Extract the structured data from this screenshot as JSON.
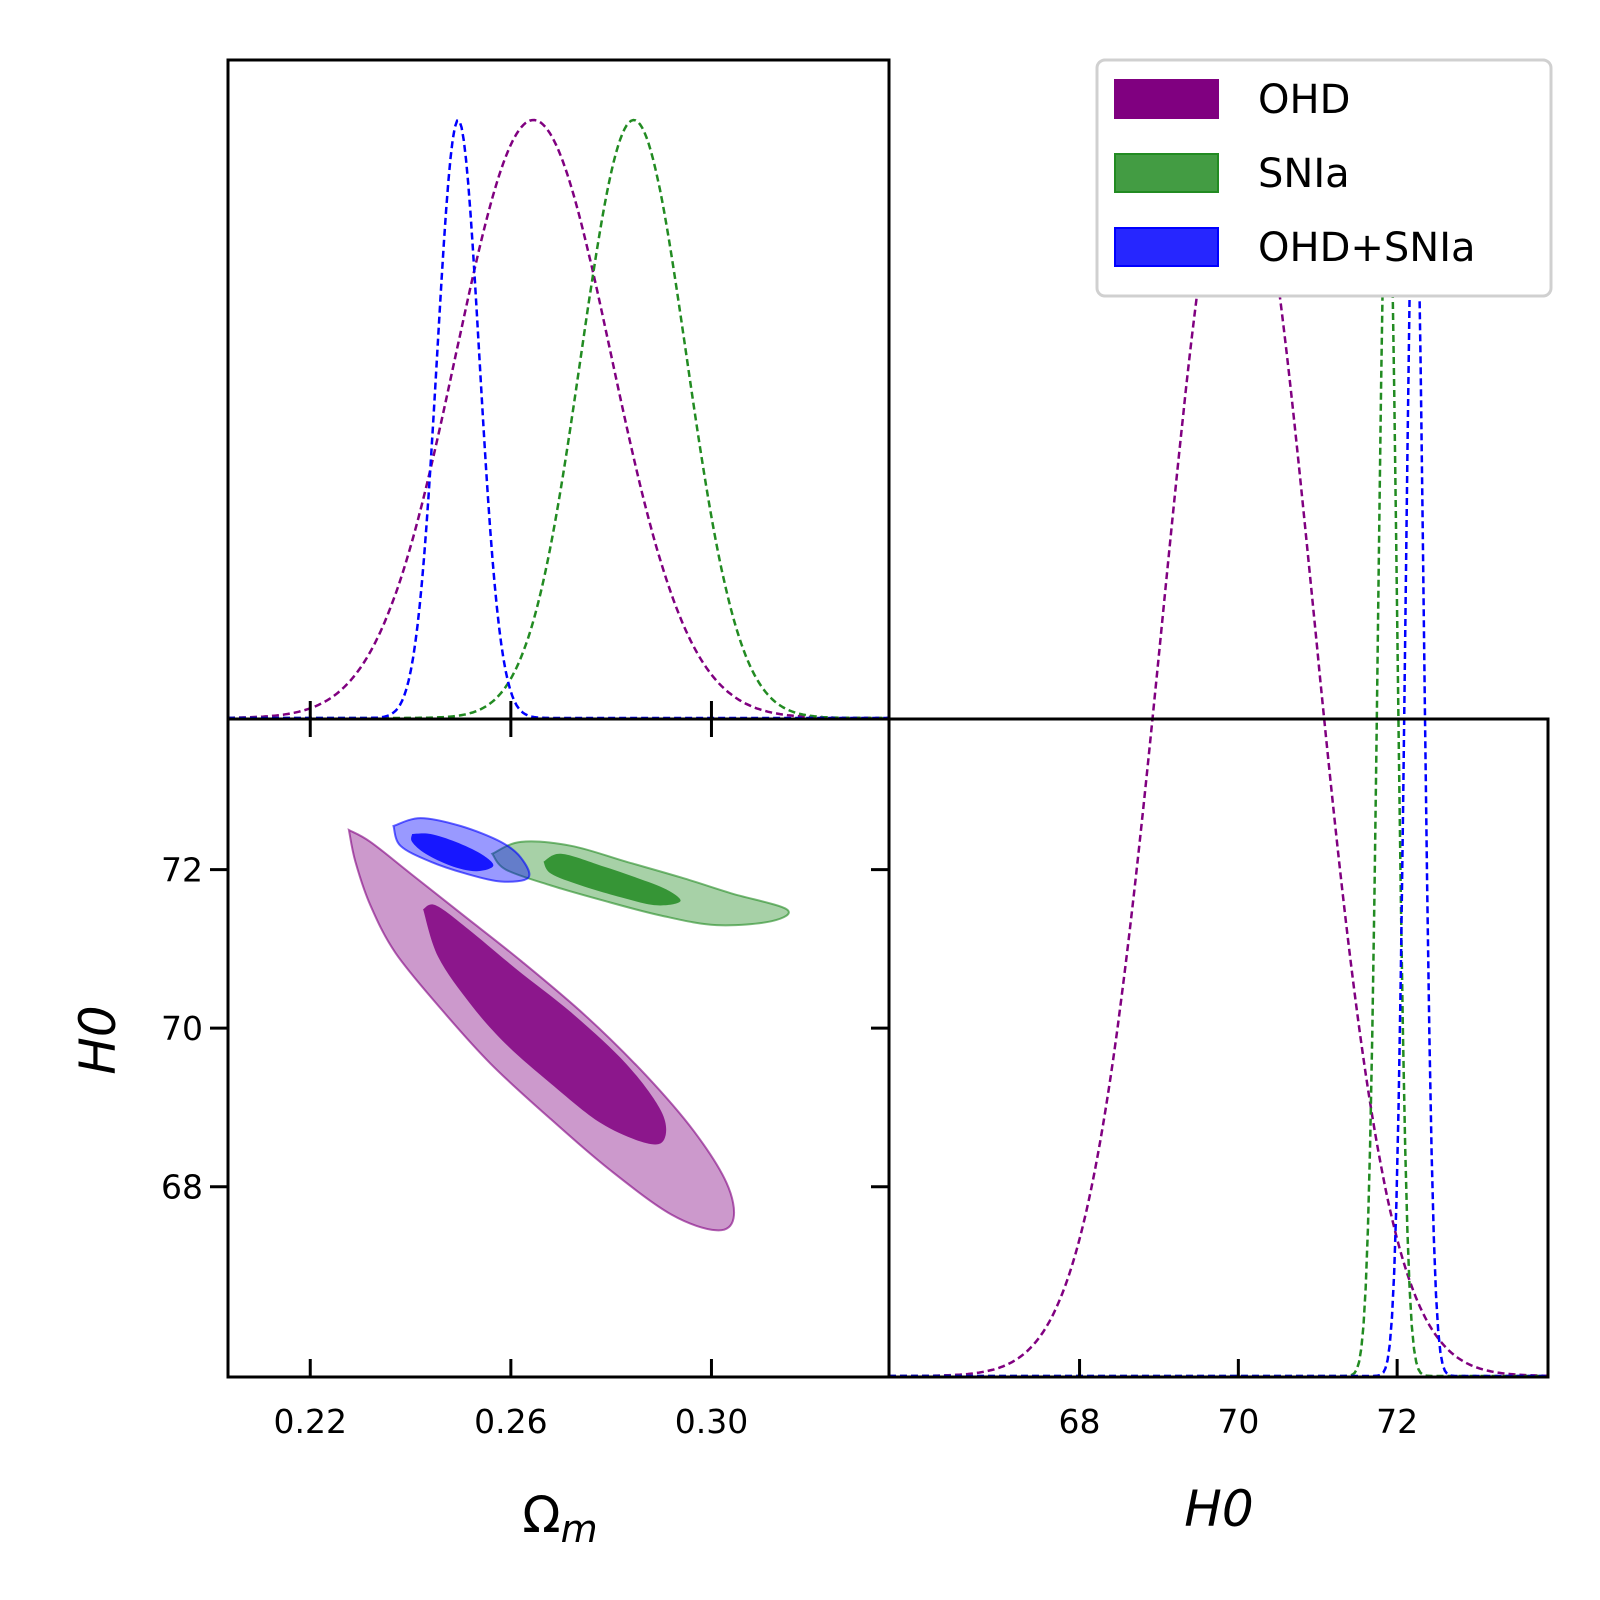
{
  "chart_data": {
    "type": "corner",
    "parameters": [
      {
        "key": "om",
        "label_main": "Ω",
        "label_sub": "m",
        "range": [
          0.2036,
          0.3354
        ],
        "ticks": [
          0.22,
          0.26,
          0.3
        ],
        "tick_labels": [
          "0.22",
          "0.26",
          "0.30"
        ]
      },
      {
        "key": "h0",
        "label_main": "H0",
        "label_sub": "",
        "range": [
          65.6,
          73.9
        ],
        "ticks": [
          68,
          70,
          72
        ],
        "tick_labels": [
          "68",
          "70",
          "72"
        ]
      }
    ],
    "legend": {
      "position": "top-right",
      "entries": [
        {
          "label": "OHD",
          "color": "#800080"
        },
        {
          "label": "SNIa",
          "color": "#228B22"
        },
        {
          "label": "OHD+SNIa",
          "color": "#0000FF"
        }
      ]
    },
    "series": [
      {
        "name": "OHD",
        "color": "#800080",
        "om_mean": 0.2645,
        "om_sigma": 0.0155,
        "h0_mean": 70.0,
        "h0_sigma": 0.95,
        "contour_68": [
          [
            0.2425,
            71.5
          ],
          [
            0.2455,
            70.9
          ],
          [
            0.252,
            70.3
          ],
          [
            0.259,
            69.8
          ],
          [
            0.268,
            69.3
          ],
          [
            0.278,
            68.8
          ],
          [
            0.287,
            68.55
          ],
          [
            0.2906,
            68.6
          ],
          [
            0.29,
            68.95
          ],
          [
            0.283,
            69.55
          ],
          [
            0.272,
            70.2
          ],
          [
            0.261,
            70.75
          ],
          [
            0.2515,
            71.25
          ],
          [
            0.245,
            71.55
          ],
          [
            0.2425,
            71.5
          ]
        ],
        "contour_95": [
          [
            0.2277,
            72.5
          ],
          [
            0.232,
            72.35
          ],
          [
            0.24,
            71.95
          ],
          [
            0.25,
            71.45
          ],
          [
            0.262,
            70.85
          ],
          [
            0.275,
            70.15
          ],
          [
            0.287,
            69.4
          ],
          [
            0.2965,
            68.7
          ],
          [
            0.303,
            68.05
          ],
          [
            0.3044,
            67.6
          ],
          [
            0.301,
            67.45
          ],
          [
            0.292,
            67.65
          ],
          [
            0.28,
            68.2
          ],
          [
            0.268,
            68.85
          ],
          [
            0.256,
            69.55
          ],
          [
            0.246,
            70.25
          ],
          [
            0.237,
            70.95
          ],
          [
            0.232,
            71.55
          ],
          [
            0.229,
            72.1
          ],
          [
            0.2277,
            72.5
          ]
        ]
      },
      {
        "name": "SNIa",
        "color": "#228B22",
        "om_mean": 0.2845,
        "om_sigma": 0.0105,
        "h0_mean": 71.88,
        "h0_sigma": 0.12,
        "contour_68": [
          [
            0.2665,
            72.1
          ],
          [
            0.27,
            72.2
          ],
          [
            0.278,
            72.05
          ],
          [
            0.285,
            71.9
          ],
          [
            0.291,
            71.75
          ],
          [
            0.2938,
            71.6
          ],
          [
            0.289,
            71.55
          ],
          [
            0.282,
            71.65
          ],
          [
            0.274,
            71.8
          ],
          [
            0.268,
            71.95
          ],
          [
            0.2665,
            72.1
          ]
        ],
        "contour_95": [
          [
            0.2563,
            72.2
          ],
          [
            0.262,
            72.35
          ],
          [
            0.272,
            72.3
          ],
          [
            0.283,
            72.1
          ],
          [
            0.294,
            71.9
          ],
          [
            0.304,
            71.7
          ],
          [
            0.315,
            71.5
          ],
          [
            0.312,
            71.35
          ],
          [
            0.301,
            71.3
          ],
          [
            0.29,
            71.42
          ],
          [
            0.279,
            71.6
          ],
          [
            0.268,
            71.8
          ],
          [
            0.259,
            72.0
          ],
          [
            0.2563,
            72.2
          ]
        ]
      },
      {
        "name": "OHD+SNIa",
        "color": "#0000FF",
        "om_mean": 0.2495,
        "om_sigma": 0.0042,
        "h0_mean": 72.22,
        "h0_sigma": 0.115,
        "contour_68": [
          [
            0.2403,
            72.45
          ],
          [
            0.244,
            72.45
          ],
          [
            0.249,
            72.35
          ],
          [
            0.254,
            72.2
          ],
          [
            0.2565,
            72.05
          ],
          [
            0.253,
            71.98
          ],
          [
            0.248,
            72.05
          ],
          [
            0.243,
            72.2
          ],
          [
            0.2403,
            72.35
          ],
          [
            0.2403,
            72.45
          ]
        ],
        "contour_95": [
          [
            0.2366,
            72.55
          ],
          [
            0.242,
            72.65
          ],
          [
            0.25,
            72.55
          ],
          [
            0.258,
            72.35
          ],
          [
            0.262,
            72.15
          ],
          [
            0.2635,
            71.9
          ],
          [
            0.258,
            71.85
          ],
          [
            0.251,
            71.95
          ],
          [
            0.244,
            72.1
          ],
          [
            0.238,
            72.3
          ],
          [
            0.2366,
            72.55
          ]
        ]
      }
    ]
  }
}
